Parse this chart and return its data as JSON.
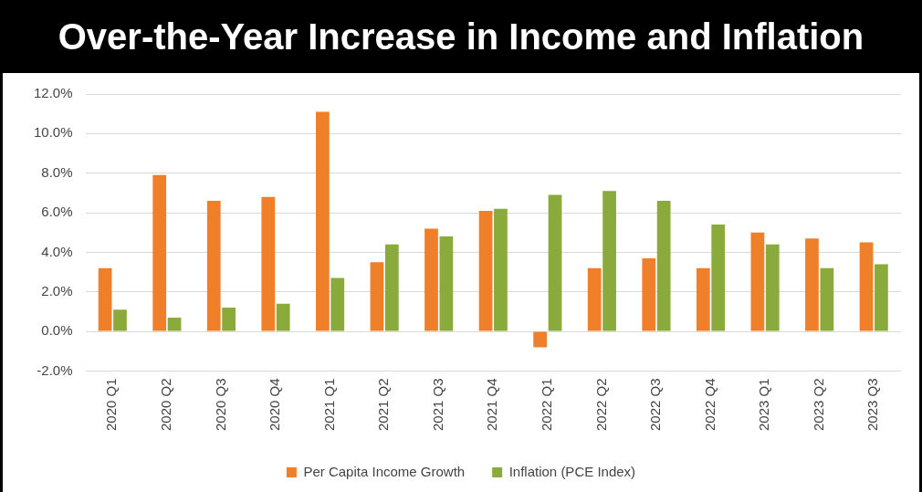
{
  "chart_data": {
    "type": "bar",
    "title": "Over-the-Year Increase in Income and Inflation",
    "categories": [
      "2020 Q1",
      "2020 Q2",
      "2020 Q3",
      "2020 Q4",
      "2021 Q1",
      "2021 Q2",
      "2021 Q3",
      "2021 Q4",
      "2022 Q1",
      "2022 Q2",
      "2022 Q3",
      "2022 Q4",
      "2023 Q1",
      "2023 Q2",
      "2023 Q3"
    ],
    "series": [
      {
        "name": "Per Capita Income Growth",
        "color": "#f07f2a",
        "values": [
          3.2,
          7.9,
          6.6,
          6.8,
          11.1,
          3.5,
          5.2,
          6.1,
          -0.8,
          3.2,
          3.7,
          3.2,
          5.0,
          4.7,
          4.5
        ]
      },
      {
        "name": "Inflation (PCE Index)",
        "color": "#8aaa3c",
        "values": [
          1.1,
          0.7,
          1.2,
          1.4,
          2.7,
          4.4,
          4.8,
          6.2,
          6.9,
          7.1,
          6.6,
          5.4,
          4.4,
          3.2,
          3.4
        ]
      }
    ],
    "ylim": [
      -2,
      12
    ],
    "yticks": [
      {
        "value": -2,
        "label": "-2.0%"
      },
      {
        "value": 0,
        "label": "0.0%"
      },
      {
        "value": 2,
        "label": "2.0%"
      },
      {
        "value": 4,
        "label": "4.0%"
      },
      {
        "value": 6,
        "label": "6.0%"
      },
      {
        "value": 8,
        "label": "8.0%"
      },
      {
        "value": 10,
        "label": "10.0%"
      },
      {
        "value": 12,
        "label": "12.0%"
      }
    ],
    "grid": "y",
    "legend": "bottom"
  }
}
